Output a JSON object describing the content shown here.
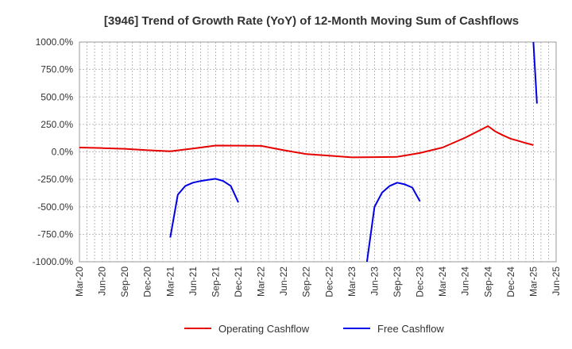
{
  "chart_data": {
    "type": "line",
    "title": "[3946]  Trend of Growth Rate (YoY) of 12-Month Moving Sum of Cashflows",
    "xlabel": "",
    "ylabel": "",
    "ylim": [
      -1000,
      1000
    ],
    "yticks": [
      1000,
      750,
      500,
      250,
      0,
      -250,
      -500,
      -750,
      -1000
    ],
    "ytick_labels": [
      "1000.0%",
      "750.0%",
      "500.0%",
      "250.0%",
      "0.0%",
      "-250.0%",
      "-500.0%",
      "-750.0%",
      "-1000.0%"
    ],
    "xticks": [
      "Mar-20",
      "Jun-20",
      "Sep-20",
      "Dec-20",
      "Mar-21",
      "Jun-21",
      "Sep-21",
      "Dec-21",
      "Mar-22",
      "Jun-22",
      "Sep-22",
      "Dec-22",
      "Mar-23",
      "Jun-23",
      "Sep-23",
      "Dec-23",
      "Mar-24",
      "Jun-24",
      "Sep-24",
      "Dec-24",
      "Mar-25",
      "Jun-25"
    ],
    "grid": true,
    "legend_position": "bottom",
    "series": [
      {
        "name": "Operating Cashflow",
        "color": "#e60000",
        "points": [
          [
            "2020-03",
            40
          ],
          [
            "2020-06",
            35
          ],
          [
            "2020-09",
            28
          ],
          [
            "2020-12",
            15
          ],
          [
            "2021-03",
            5
          ],
          [
            "2021-06",
            30
          ],
          [
            "2021-09",
            58
          ],
          [
            "2021-12",
            57
          ],
          [
            "2022-03",
            55
          ],
          [
            "2022-06",
            15
          ],
          [
            "2022-09",
            -20
          ],
          [
            "2022-12",
            -35
          ],
          [
            "2023-03",
            -50
          ],
          [
            "2023-06",
            -48
          ],
          [
            "2023-09",
            -45
          ],
          [
            "2023-12",
            -10
          ],
          [
            "2024-03",
            40
          ],
          [
            "2024-06",
            130
          ],
          [
            "2024-09",
            235
          ],
          [
            "2024-10",
            185
          ],
          [
            "2024-11",
            150
          ],
          [
            "2024-12",
            120
          ],
          [
            "2025-01",
            100
          ],
          [
            "2025-02",
            80
          ],
          [
            "2025-03",
            62
          ]
        ]
      },
      {
        "name": "Free Cashflow",
        "color": "#0000e6",
        "segments": [
          [
            [
              "2021-03",
              -780
            ],
            [
              "2021-04",
              -390
            ],
            [
              "2021-05",
              -310
            ],
            [
              "2021-06",
              -280
            ],
            [
              "2021-07",
              -265
            ],
            [
              "2021-08",
              -255
            ],
            [
              "2021-09",
              -245
            ],
            [
              "2021-10",
              -265
            ],
            [
              "2021-11",
              -310
            ],
            [
              "2021-12",
              -460
            ]
          ],
          [
            [
              "2023-05",
              -1000
            ],
            [
              "2023-06",
              -500
            ],
            [
              "2023-07",
              -370
            ],
            [
              "2023-08",
              -310
            ],
            [
              "2023-09",
              -280
            ],
            [
              "2023-10",
              -295
            ],
            [
              "2023-11",
              -325
            ],
            [
              "2023-12",
              -450
            ]
          ],
          [
            [
              "2025-03",
              1000
            ],
            [
              "2025-03-15",
              440
            ]
          ]
        ]
      }
    ]
  }
}
